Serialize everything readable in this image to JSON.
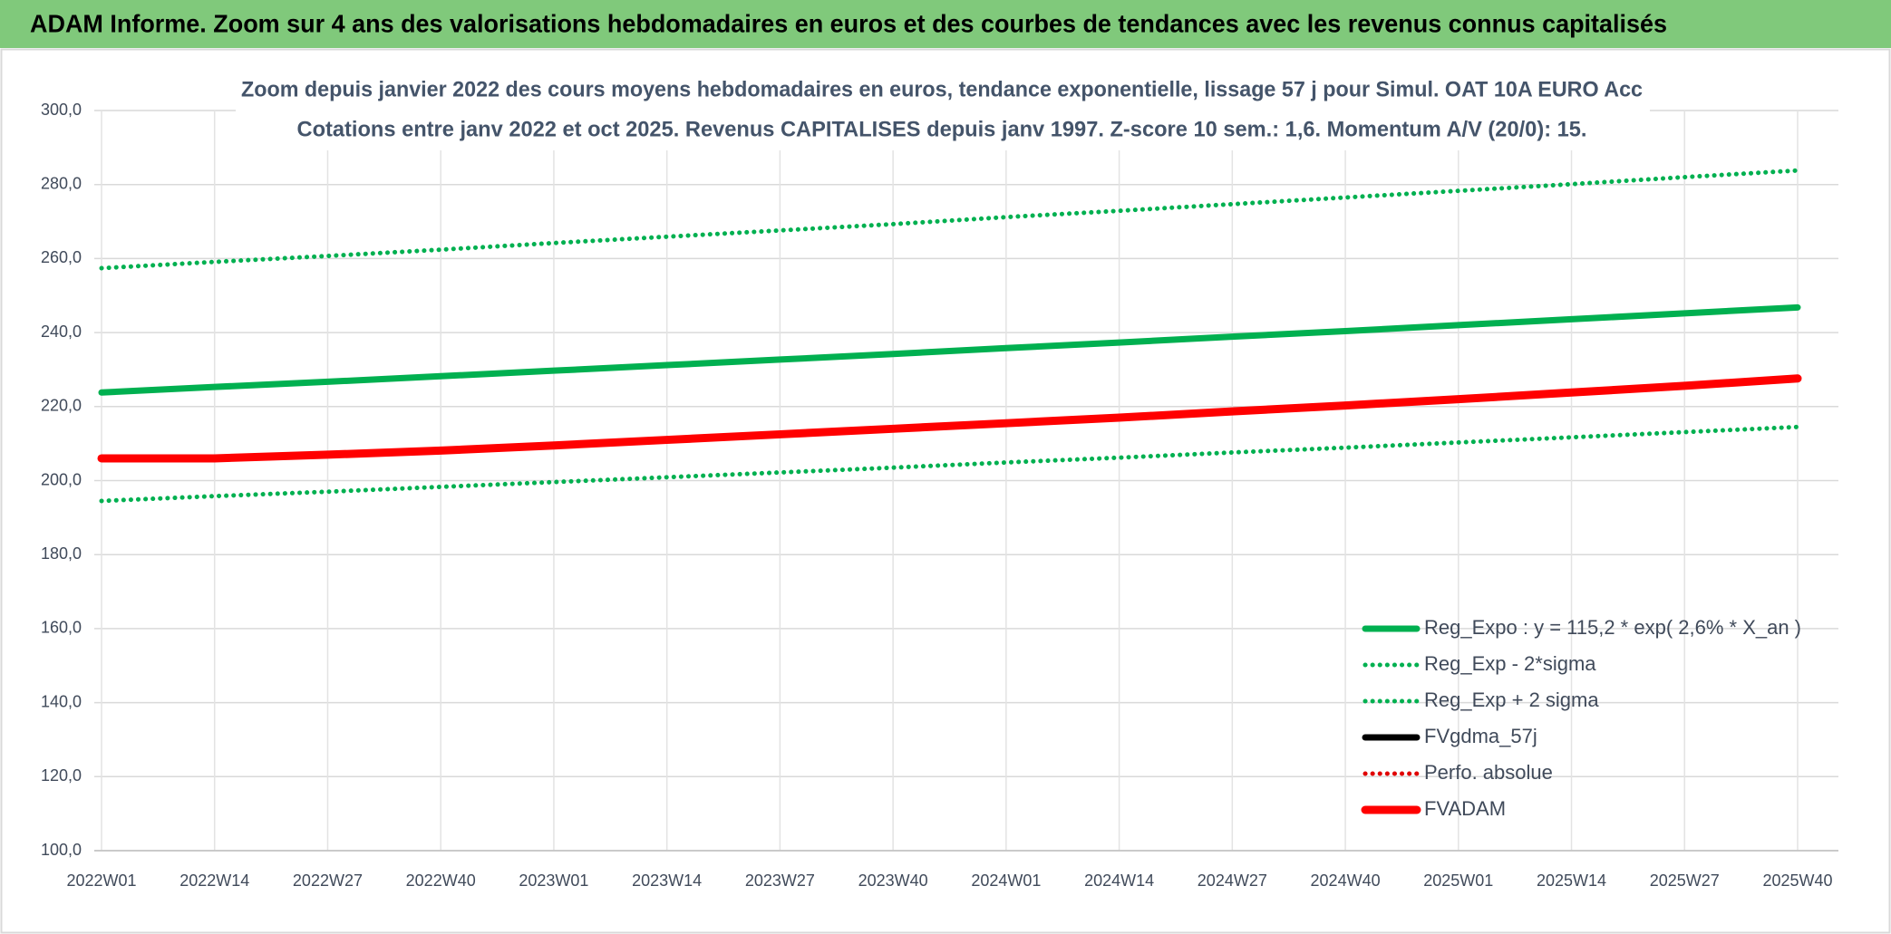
{
  "header": {
    "title": "ADAM Informe. Zoom sur 4 ans des valorisations hebdomadaires en euros et des courbes de tendances avec les revenus connus capitalisés"
  },
  "chart_data": {
    "type": "line",
    "title": "Zoom depuis janvier 2022 des cours moyens hebdomadaires en euros, tendance exponentielle, lissage 57 j pour Simul. OAT 10A EURO Acc",
    "subtitle": "Cotations entre janv 2022 et oct 2025. Revenus CAPITALISES depuis janv 1997. Z-score 10 sem.: 1,6. Momentum A/V (20/0): 15.",
    "categories": [
      "2022W01",
      "2022W14",
      "2022W27",
      "2022W40",
      "2023W01",
      "2023W14",
      "2023W27",
      "2023W40",
      "2024W01",
      "2024W14",
      "2024W27",
      "2024W40",
      "2025W01",
      "2025W14",
      "2025W27",
      "2025W40"
    ],
    "series": [
      {
        "name": "Reg_Expo : y = 115,2 * exp( 2,6% *  X_an )",
        "color": "#00b050",
        "style": "solid",
        "values": [
          223.8,
          225.3,
          226.7,
          228.2,
          229.7,
          231.2,
          232.7,
          234.2,
          235.8,
          237.3,
          238.9,
          240.4,
          242.0,
          243.6,
          245.2,
          246.8
        ]
      },
      {
        "name": "Reg_Exp - 2*sigma",
        "color": "#00b050",
        "style": "dotted",
        "values": [
          194.5,
          195.8,
          197.0,
          198.3,
          199.6,
          200.9,
          202.2,
          203.5,
          204.9,
          206.2,
          207.6,
          208.9,
          210.3,
          211.7,
          213.1,
          214.5
        ]
      },
      {
        "name": "Reg_Exp + 2 sigma",
        "color": "#00b050",
        "style": "dotted",
        "values": [
          257.4,
          259.1,
          260.7,
          262.4,
          264.2,
          265.9,
          267.6,
          269.3,
          271.2,
          272.9,
          274.7,
          276.5,
          278.3,
          280.1,
          282.0,
          283.8
        ]
      },
      {
        "name": "FVgdma_57j",
        "color": "#000000",
        "style": "solid",
        "values": [
          null,
          null,
          null,
          null,
          null,
          null,
          null,
          null,
          null,
          null,
          null,
          null,
          null,
          null,
          null,
          null
        ]
      },
      {
        "name": "Perfo. absolue",
        "color": "#e00000",
        "style": "dotted",
        "values": [
          null,
          null,
          null,
          null,
          null,
          null,
          null,
          null,
          null,
          null,
          null,
          null,
          null,
          null,
          null,
          null
        ]
      },
      {
        "name": "FVADAM",
        "color": "#ff0000",
        "style": "thick",
        "values": [
          206.0,
          206.0,
          207.0,
          208.1,
          209.5,
          211.0,
          212.5,
          214.0,
          215.5,
          217.0,
          218.7,
          220.3,
          222.0,
          223.8,
          225.6,
          227.6
        ]
      }
    ],
    "ylim": [
      100,
      300
    ],
    "yticks": [
      {
        "value": 100,
        "label": "100,0"
      },
      {
        "value": 120,
        "label": "120,0"
      },
      {
        "value": 140,
        "label": "140,0"
      },
      {
        "value": 160,
        "label": "160,0"
      },
      {
        "value": 180,
        "label": "180,0"
      },
      {
        "value": 200,
        "label": "200,0"
      },
      {
        "value": 220,
        "label": "220,0"
      },
      {
        "value": 240,
        "label": "240,0"
      },
      {
        "value": 260,
        "label": "260,0"
      },
      {
        "value": 280,
        "label": "280,0"
      },
      {
        "value": 300,
        "label": "300,0"
      }
    ],
    "grid": true,
    "legend": "lower right"
  }
}
